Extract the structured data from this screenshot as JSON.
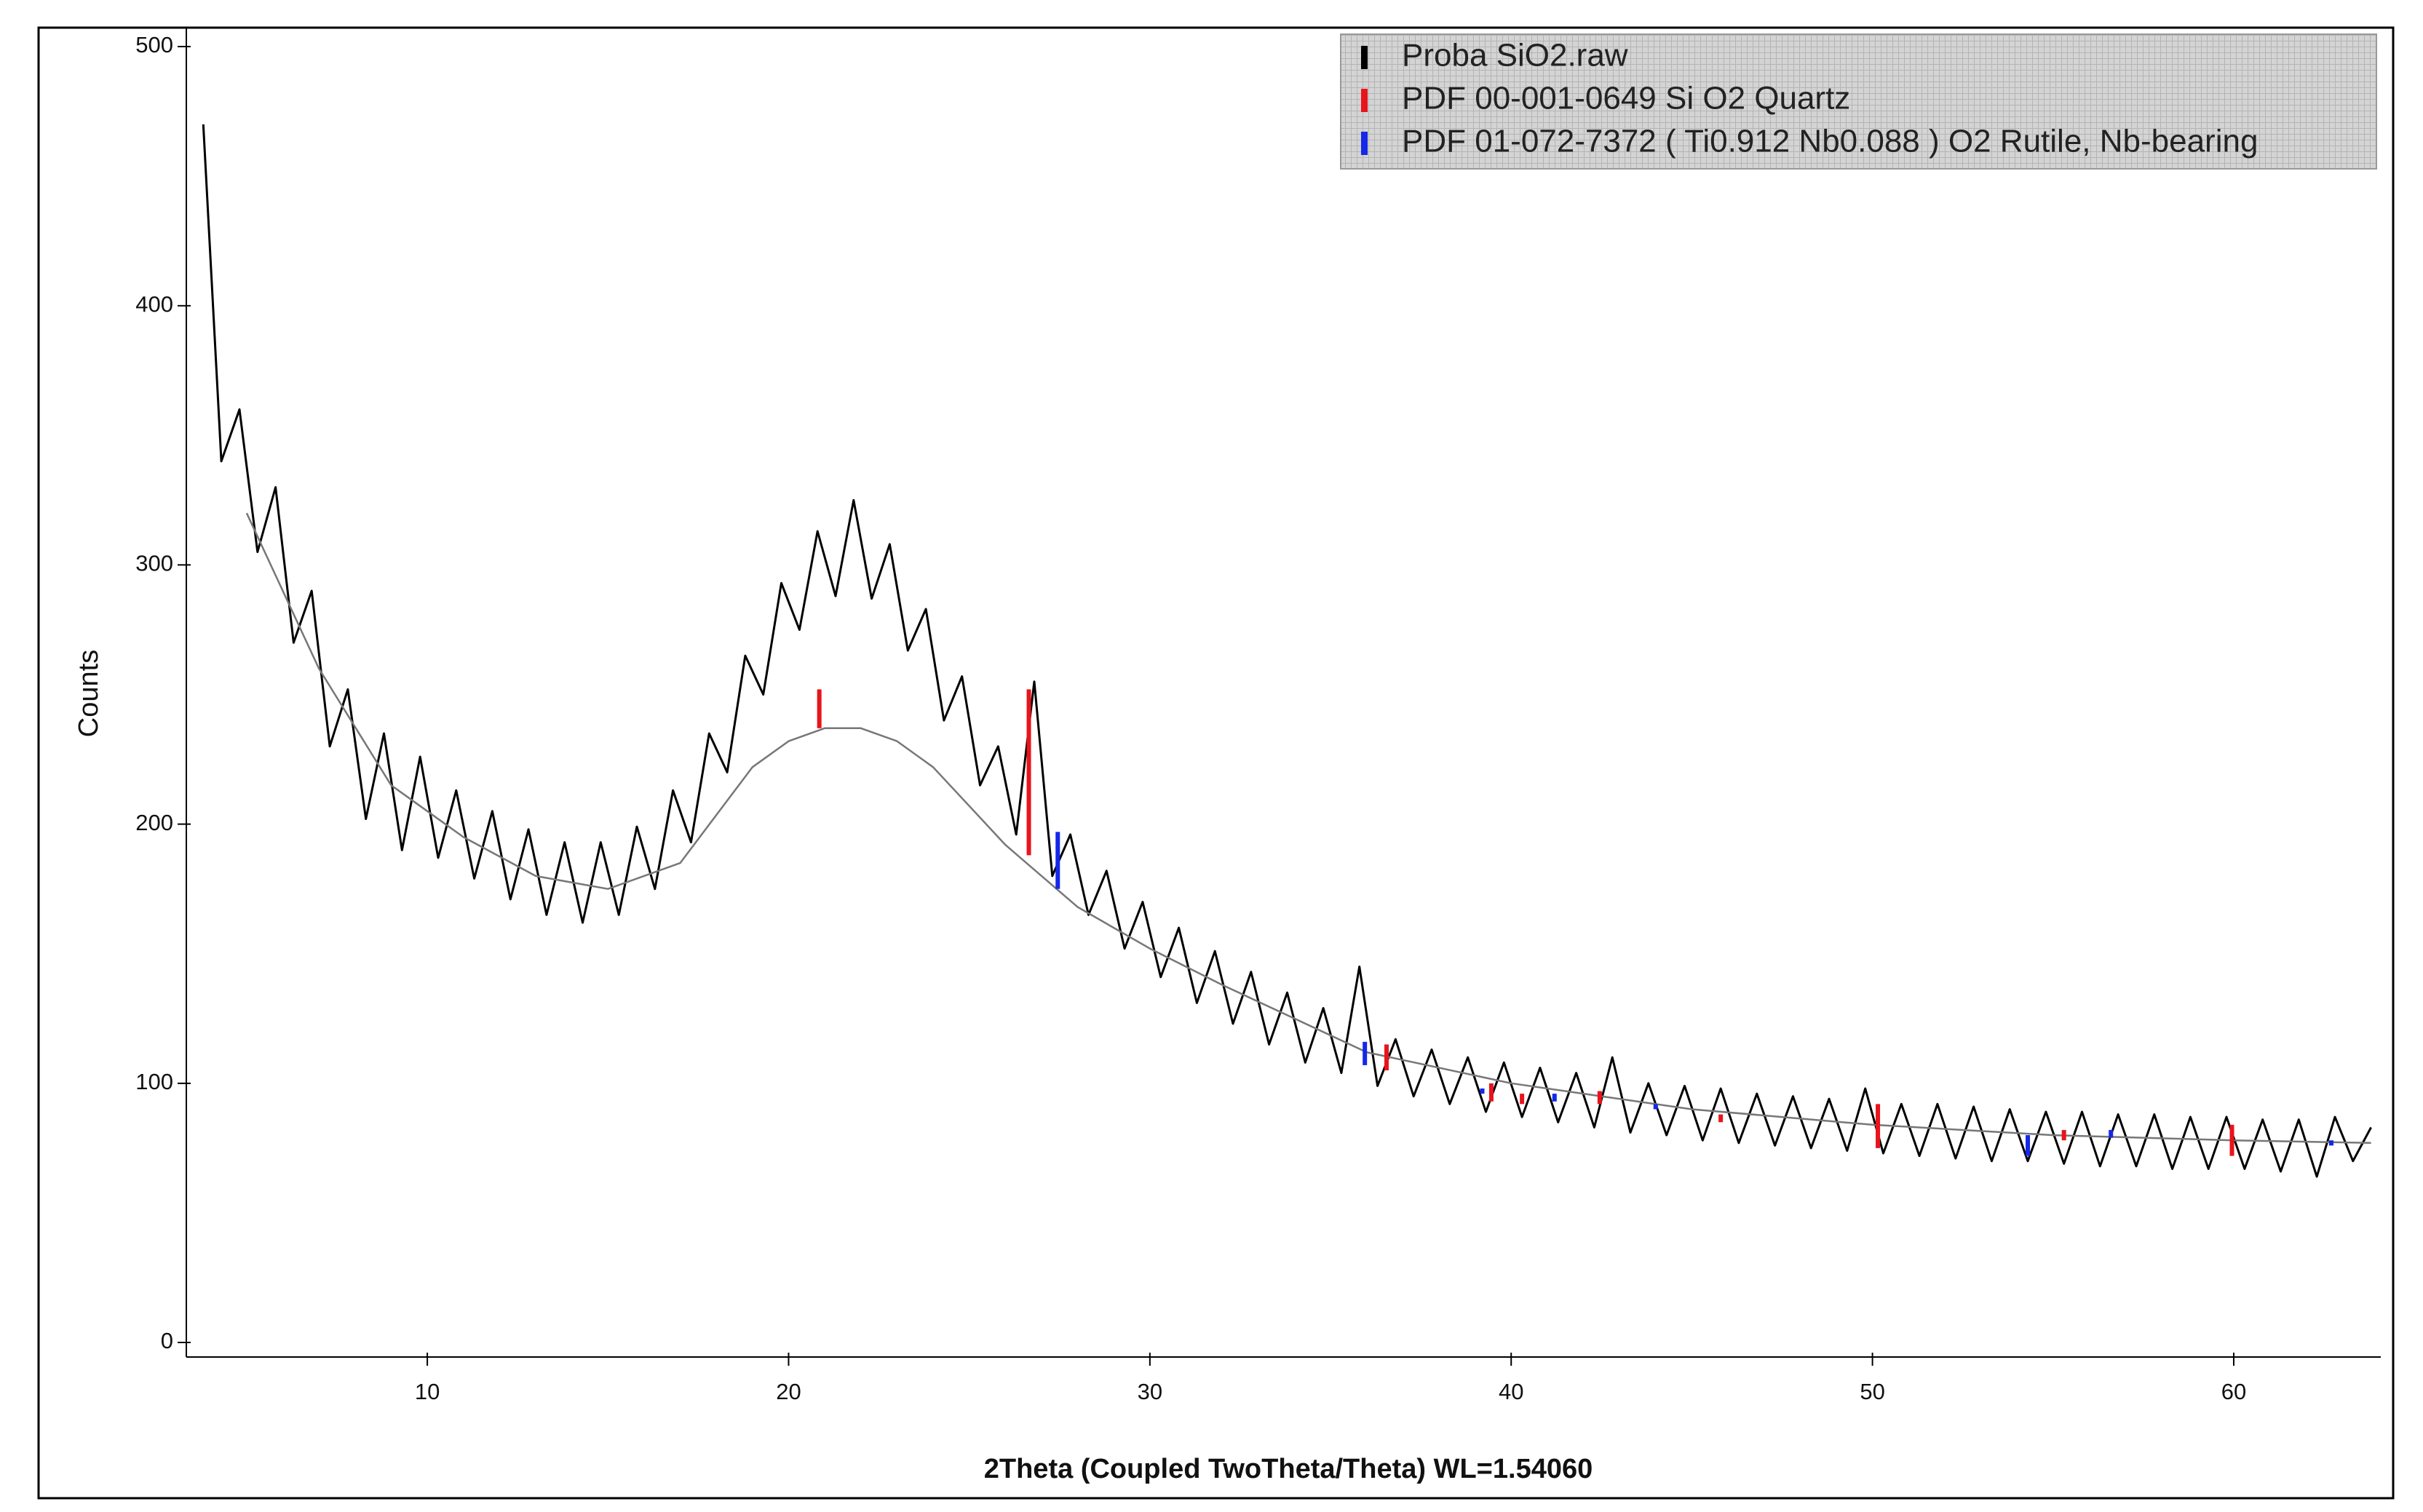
{
  "chart_data": {
    "type": "line",
    "x_label": "2Theta (Coupled TwoTheta/Theta) WL=1.54060",
    "y_label": "Counts",
    "xlim": [
      3.33,
      64.07
    ],
    "ylim": [
      -5.6,
      507.3
    ],
    "xticks": [
      10,
      20,
      30,
      40,
      50,
      60
    ],
    "yticks": [
      0,
      100,
      200,
      300,
      400,
      500
    ],
    "legend": "upper right",
    "series": [
      {
        "name": "Proba SiO2.raw",
        "color": "#000000",
        "x": [
          3.8,
          4.3,
          4.8,
          5.3,
          5.8,
          6.3,
          6.8,
          7.3,
          7.8,
          8.3,
          8.8,
          9.3,
          9.8,
          10.3,
          10.8,
          11.3,
          11.8,
          12.3,
          12.8,
          13.3,
          13.8,
          14.3,
          14.8,
          15.3,
          15.8,
          16.3,
          16.8,
          17.3,
          17.8,
          18.3,
          18.8,
          19.3,
          19.8,
          20.3,
          20.8,
          21.3,
          21.8,
          22.3,
          22.8,
          23.3,
          23.8,
          24.3,
          24.8,
          25.3,
          25.8,
          26.3,
          26.8,
          27.3,
          27.8,
          28.3,
          28.8,
          29.3,
          29.8,
          30.3,
          30.8,
          31.3,
          31.8,
          32.3,
          32.8,
          33.3,
          33.8,
          34.3,
          34.8,
          35.3,
          35.8,
          36.3,
          36.8,
          37.3,
          37.8,
          38.3,
          38.8,
          39.3,
          39.8,
          40.3,
          40.8,
          41.3,
          41.8,
          42.3,
          42.8,
          43.3,
          43.8,
          44.3,
          44.8,
          45.3,
          45.8,
          46.3,
          46.8,
          47.3,
          47.8,
          48.3,
          48.8,
          49.3,
          49.8,
          50.3,
          50.8,
          51.3,
          51.8,
          52.3,
          52.8,
          53.3,
          53.8,
          54.3,
          54.8,
          55.3,
          55.8,
          56.3,
          56.8,
          57.3,
          57.8,
          58.3,
          58.8,
          59.3,
          59.8,
          60.3,
          60.8,
          61.3,
          61.8,
          62.3,
          62.8,
          63.3,
          63.8
        ],
        "values": [
          470,
          340,
          360,
          305,
          330,
          270,
          290,
          230,
          252,
          202,
          235,
          190,
          226,
          187,
          213,
          179,
          205,
          171,
          198,
          165,
          193,
          162,
          193,
          165,
          199,
          175,
          213,
          193,
          235,
          220,
          265,
          250,
          293,
          275,
          313,
          288,
          325,
          287,
          308,
          267,
          283,
          240,
          257,
          215,
          230,
          196,
          255,
          180,
          196,
          165,
          182,
          152,
          170,
          141,
          160,
          131,
          151,
          123,
          143,
          115,
          135,
          108,
          129,
          104,
          145,
          99,
          117,
          95,
          113,
          92,
          110,
          89,
          108,
          87,
          106,
          85,
          104,
          83,
          110,
          81,
          100,
          80,
          99,
          78,
          98,
          77,
          96,
          76,
          95,
          75,
          94,
          74,
          98,
          73,
          92,
          72,
          92,
          71,
          91,
          70,
          90,
          70,
          89,
          69,
          89,
          68,
          88,
          68,
          88,
          67,
          87,
          67,
          87,
          67,
          86,
          66,
          86,
          64,
          87,
          70,
          83
        ]
      },
      {
        "color": "#777777",
        "x": [
          5,
          7,
          9,
          11,
          13,
          15,
          17,
          19,
          20,
          21,
          22,
          23,
          24,
          25,
          26,
          28,
          30,
          32,
          34,
          36,
          40,
          45,
          50,
          55,
          60,
          63.8
        ],
        "values": [
          320,
          260,
          215,
          195,
          180,
          175,
          185,
          222,
          232,
          237,
          237,
          232,
          222,
          207,
          192,
          168,
          152,
          138,
          125,
          112,
          100,
          90,
          84,
          80,
          78,
          77
        ]
      },
      {
        "name": "PDF 00-001-0649 Si O2 Quartz",
        "color": "#e8141c",
        "type": "stick",
        "x": [
          20.85,
          26.65,
          36.55,
          39.45,
          40.3,
          42.45,
          45.8,
          50.15,
          55.3,
          59.95
        ],
        "base": [
          237,
          188,
          105,
          93,
          92,
          92,
          85,
          75,
          78,
          72
        ],
        "values": [
          252,
          252,
          115,
          100,
          96,
          97,
          88,
          92,
          82,
          84
        ]
      },
      {
        "name": "PDF 01-072-7372 ( Ti0.912 Nb0.088 ) O2 Rutile, Nb-bearing",
        "color": "#1428e8",
        "type": "stick",
        "x": [
          27.45,
          35.95,
          39.2,
          41.2,
          44.0,
          54.3,
          56.6,
          62.7
        ],
        "base": [
          175,
          107,
          96,
          93,
          90,
          72,
          79,
          76
        ],
        "values": [
          197,
          116,
          98,
          96,
          92,
          80,
          82,
          78
        ]
      }
    ]
  }
}
